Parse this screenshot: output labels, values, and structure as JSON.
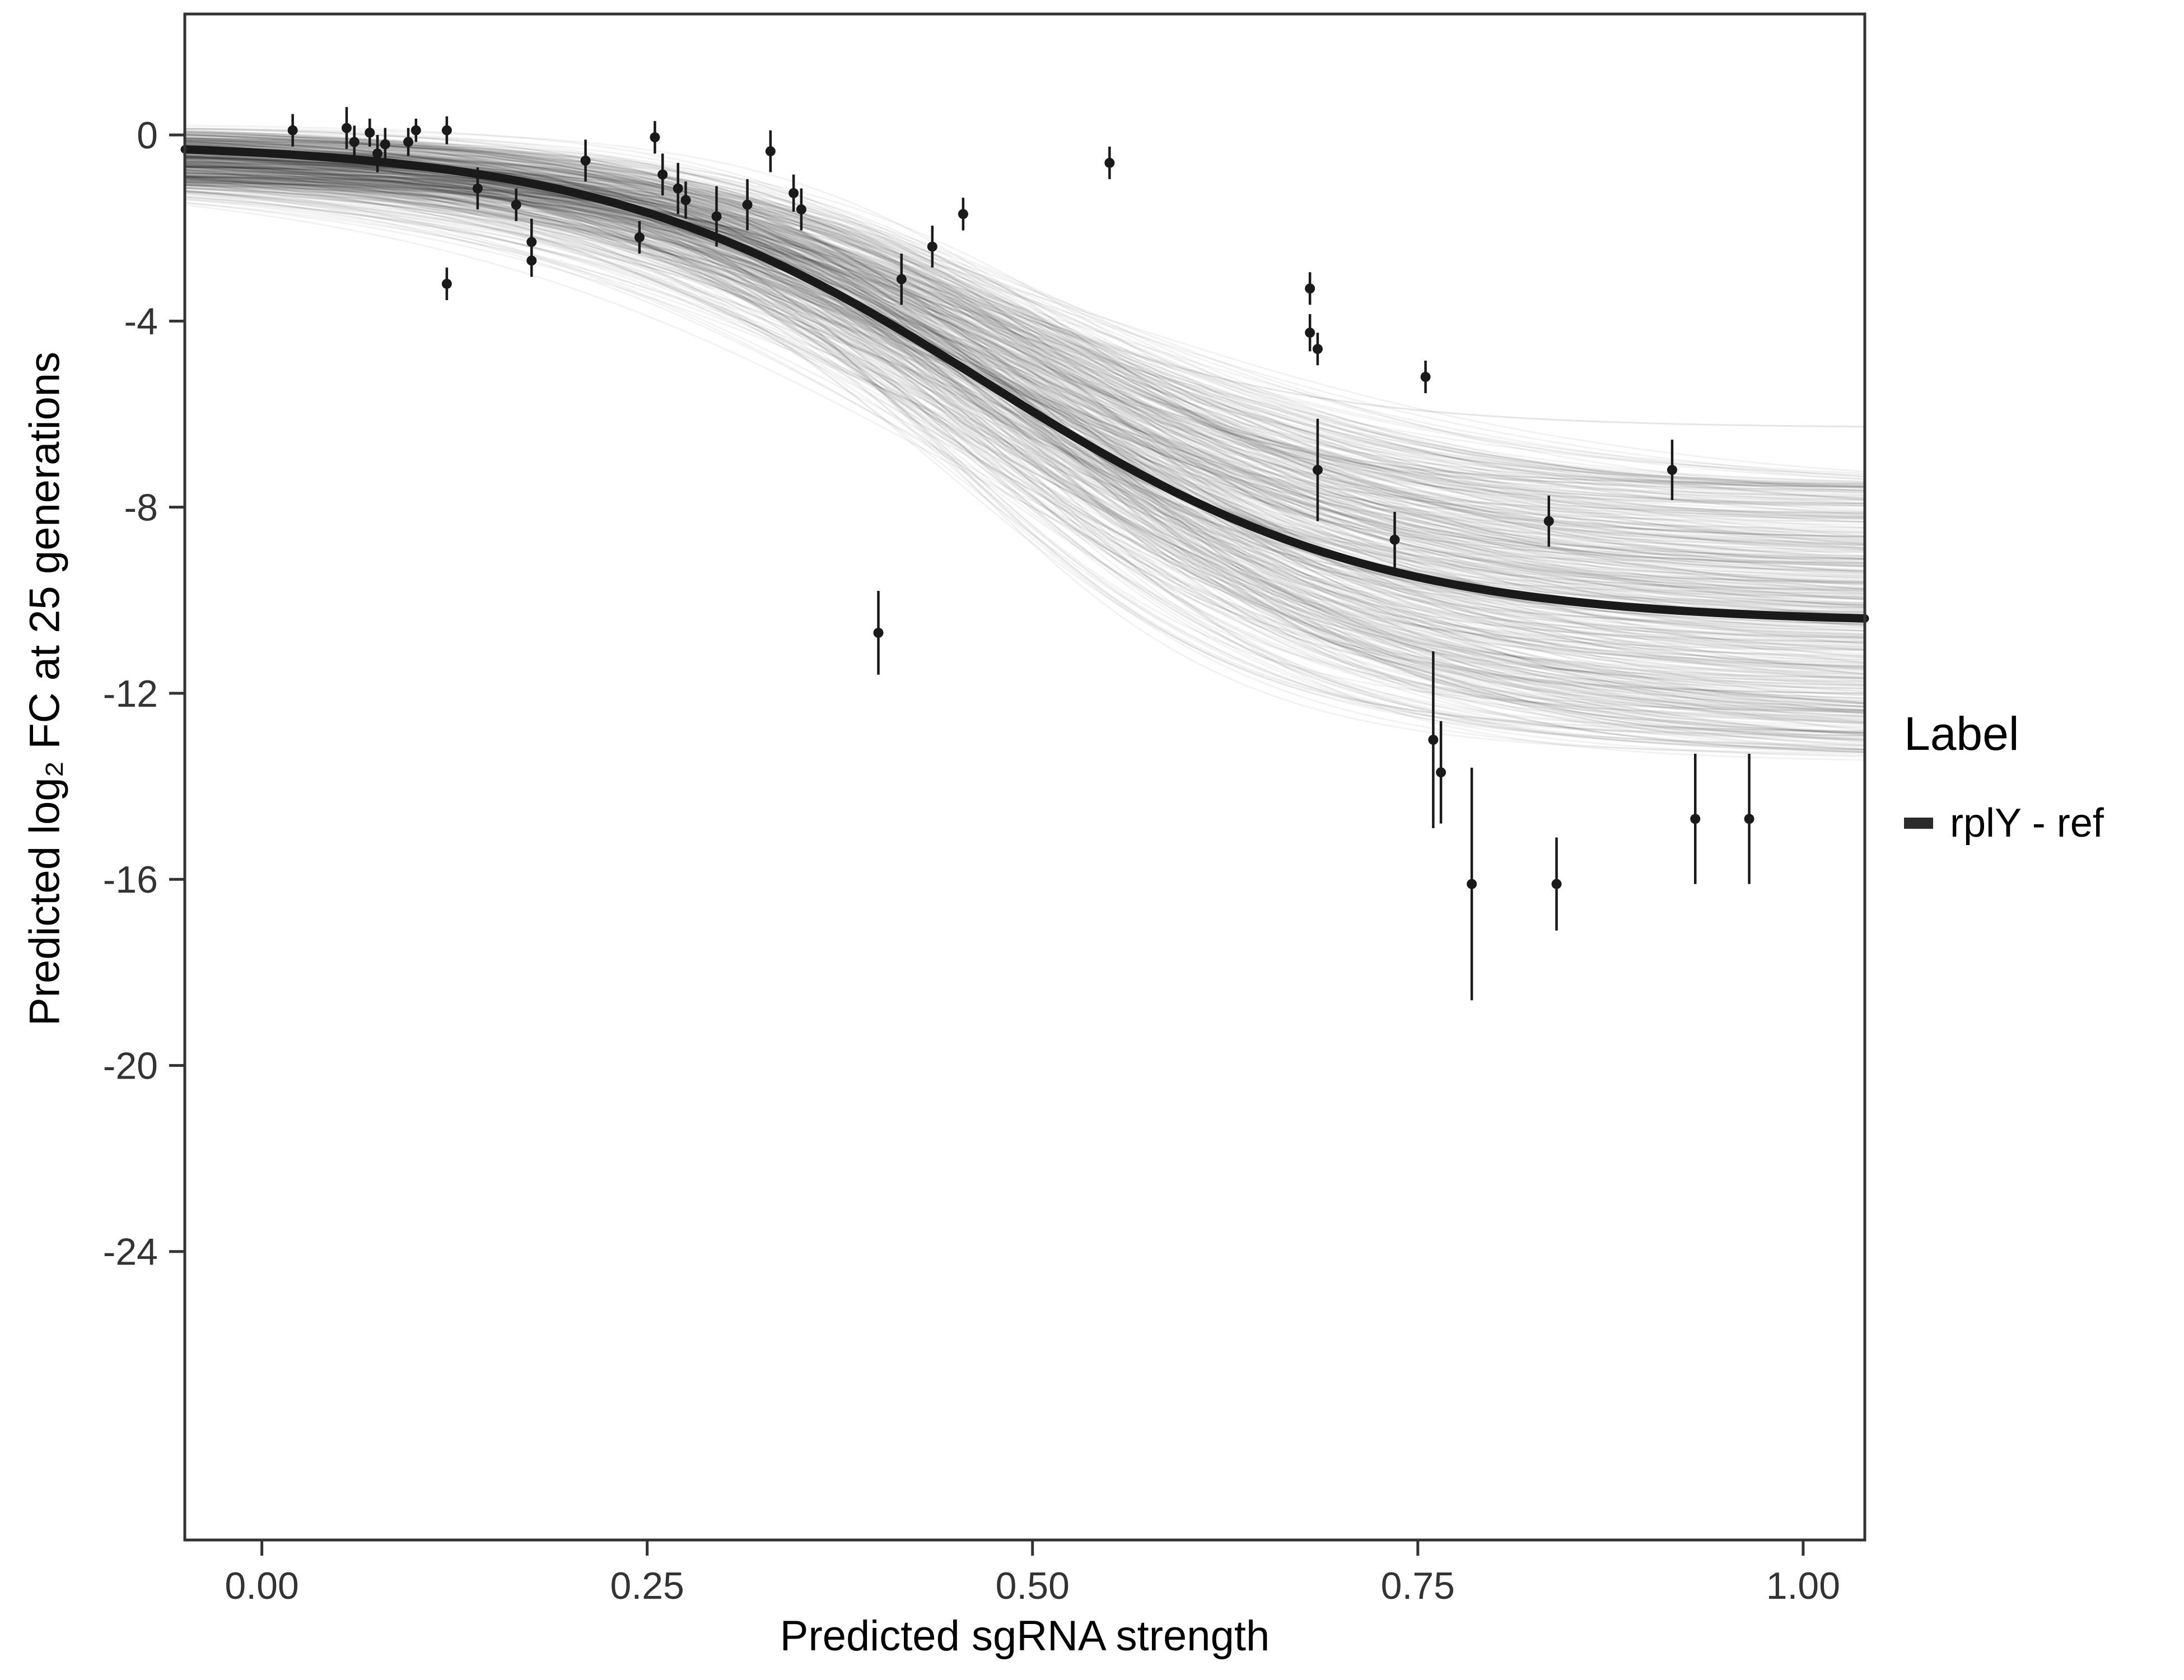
{
  "chart_data": {
    "type": "scatter",
    "title": "",
    "xlabel": "Predicted sgRNA strength",
    "ylabel": "Predicted log₂ FC at 25 generations",
    "xlim": [
      -0.05,
      1.04
    ],
    "ylim": [
      -30.2,
      2.6
    ],
    "grid": false,
    "x_tick_values": [
      0,
      0.25,
      0.5,
      0.75,
      1.0
    ],
    "x_tick_labels": [
      "0.00",
      "0.25",
      "0.50",
      "0.75",
      "1.00"
    ],
    "y_tick_values": [
      0,
      -4,
      -8,
      -12,
      -16,
      -20,
      -24
    ],
    "y_tick_labels": [
      "0",
      "-4",
      "-8",
      "-12",
      "-16",
      "-20",
      "-24"
    ],
    "colors": {
      "point": "#1a1a1a",
      "fit_line": "#1a1a1a",
      "posterior_draw": "rgba(0,0,0,0.05)",
      "axis": "#333333",
      "tick_label": "#333333"
    },
    "legend": {
      "title": "Label",
      "position": "right",
      "items": [
        {
          "label": "rplY - ref",
          "color": "#2b2b2b",
          "marker": "line"
        }
      ]
    },
    "fit_curve": {
      "model": "sigmoid",
      "ymax": -0.15,
      "ymin": -10.5,
      "x0": 0.47,
      "k": 8,
      "stroke_width": 15
    },
    "posterior_draws": {
      "count": 450,
      "seed": 7,
      "ymax_range": [
        -1.0,
        0.25
      ],
      "ymin_range": [
        -13.5,
        -7.5
      ],
      "x0_range": [
        0.43,
        0.55
      ],
      "k_range": [
        5.5,
        10.5
      ],
      "stroke_width": 3
    },
    "outlier_draws": [
      {
        "ymax": -0.2,
        "ymin": -6.3,
        "x0": 0.45,
        "k": 9
      }
    ],
    "points": [
      {
        "x": 0.02,
        "y": 0.1,
        "e": 0.35
      },
      {
        "x": 0.055,
        "y": 0.15,
        "e": 0.45
      },
      {
        "x": 0.06,
        "y": -0.15,
        "e": 0.35
      },
      {
        "x": 0.07,
        "y": 0.05,
        "e": 0.3
      },
      {
        "x": 0.075,
        "y": -0.4,
        "e": 0.4
      },
      {
        "x": 0.08,
        "y": -0.2,
        "e": 0.35
      },
      {
        "x": 0.095,
        "y": -0.15,
        "e": 0.3
      },
      {
        "x": 0.1,
        "y": 0.1,
        "e": 0.25
      },
      {
        "x": 0.12,
        "y": 0.1,
        "e": 0.3
      },
      {
        "x": 0.12,
        "y": -3.2,
        "e": 0.35
      },
      {
        "x": 0.14,
        "y": -1.15,
        "e": 0.45
      },
      {
        "x": 0.165,
        "y": -1.5,
        "e": 0.35
      },
      {
        "x": 0.175,
        "y": -2.3,
        "e": 0.5
      },
      {
        "x": 0.175,
        "y": -2.7,
        "e": 0.35
      },
      {
        "x": 0.21,
        "y": -0.55,
        "e": 0.45
      },
      {
        "x": 0.245,
        "y": -2.2,
        "e": 0.35
      },
      {
        "x": 0.255,
        "y": -0.05,
        "e": 0.35
      },
      {
        "x": 0.26,
        "y": -0.85,
        "e": 0.45
      },
      {
        "x": 0.27,
        "y": -1.15,
        "e": 0.55
      },
      {
        "x": 0.275,
        "y": -1.4,
        "e": 0.4
      },
      {
        "x": 0.295,
        "y": -1.75,
        "e": 0.65
      },
      {
        "x": 0.315,
        "y": -1.5,
        "e": 0.55
      },
      {
        "x": 0.33,
        "y": -0.35,
        "e": 0.45
      },
      {
        "x": 0.345,
        "y": -1.25,
        "e": 0.4
      },
      {
        "x": 0.35,
        "y": -1.6,
        "e": 0.45
      },
      {
        "x": 0.4,
        "y": -10.7,
        "e": 0.9
      },
      {
        "x": 0.415,
        "y": -3.1,
        "e": 0.55
      },
      {
        "x": 0.435,
        "y": -2.4,
        "e": 0.45
      },
      {
        "x": 0.455,
        "y": -1.7,
        "e": 0.35
      },
      {
        "x": 0.55,
        "y": -0.6,
        "e": 0.35
      },
      {
        "x": 0.68,
        "y": -3.3,
        "e": 0.35
      },
      {
        "x": 0.68,
        "y": -4.25,
        "e": 0.4
      },
      {
        "x": 0.685,
        "y": -4.6,
        "e": 0.35
      },
      {
        "x": 0.685,
        "y": -7.2,
        "e": 1.1
      },
      {
        "x": 0.755,
        "y": -5.2,
        "e": 0.35
      },
      {
        "x": 0.735,
        "y": -8.7,
        "e": 0.6
      },
      {
        "x": 0.76,
        "y": -13.0,
        "e": 1.9
      },
      {
        "x": 0.765,
        "y": -13.7,
        "e": 1.1
      },
      {
        "x": 0.785,
        "y": -16.1,
        "e": 2.5
      },
      {
        "x": 0.835,
        "y": -8.3,
        "e": 0.55
      },
      {
        "x": 0.84,
        "y": -16.1,
        "e": 1.0
      },
      {
        "x": 0.915,
        "y": -7.2,
        "e": 0.65
      },
      {
        "x": 0.93,
        "y": -14.7,
        "e": 1.4
      },
      {
        "x": 0.965,
        "y": -14.7,
        "e": 1.4
      }
    ]
  }
}
